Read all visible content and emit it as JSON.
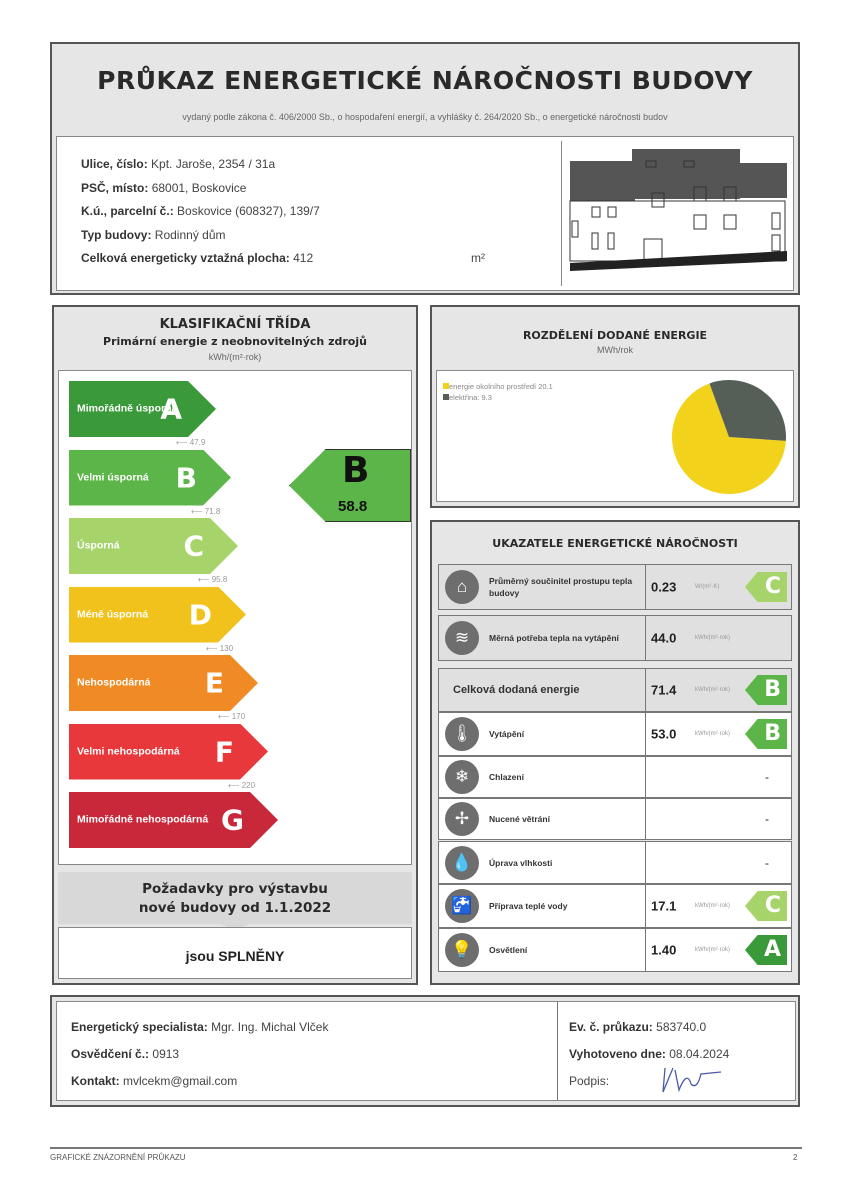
{
  "header": {
    "title": "PRŮKAZ ENERGETICKÉ NÁROČNOSTI BUDOVY",
    "subtitle": "vydaný podle zákona č. 406/2000 Sb., o hospodaření energií, a vyhlášky č. 264/2020 Sb., o energetické náročnosti budov"
  },
  "building": {
    "street_label": "Ulice, číslo:",
    "street": "Kpt. Jaroše, 2354 / 31a",
    "city_label": "PSČ, místo:",
    "city": "68001, Boskovice",
    "parcel_label": "K.ú., parcelní č.:",
    "parcel": "Boskovice (608327), 139/7",
    "type_label": "Typ budovy:",
    "type": "Rodinný dům",
    "area_label": "Celková energeticky vztažná plocha:",
    "area": "412",
    "area_unit": "m²",
    "photo": "building-facade-drawing"
  },
  "classification": {
    "title": "KLASIFIKAČNÍ TŘÍDA",
    "subtitle": "Primární energie z neobnovitelných zdrojů",
    "unit": "kWh/(m²·rok)",
    "classes": [
      {
        "letter": "A",
        "label": "Mimořádně úsporná",
        "color": "#3a9a3a",
        "threshold": "47.9"
      },
      {
        "letter": "B",
        "label": "Velmi úsporná",
        "color": "#5cb548",
        "threshold": "71.8"
      },
      {
        "letter": "C",
        "label": "Úsporná",
        "color": "#a6d46a",
        "threshold": "95.8"
      },
      {
        "letter": "D",
        "label": "Méně úsporná",
        "color": "#f1c21b",
        "threshold": "130"
      },
      {
        "letter": "E",
        "label": "Nehospodárná",
        "color": "#f08a24",
        "threshold": "170"
      },
      {
        "letter": "F",
        "label": "Velmi nehospodárná",
        "color": "#e8383b",
        "threshold": "220"
      },
      {
        "letter": "G",
        "label": "Mimořádně nehospodárná",
        "color": "#c8283a"
      }
    ],
    "result": {
      "letter": "B",
      "value": "58.8",
      "color": "#5cb548"
    },
    "requirement_line1": "Požadavky pro výstavbu",
    "requirement_line2": "nové budovy od 1.1.2022",
    "requirement_result": "jsou SPLNĚNY"
  },
  "distribution": {
    "title": "ROZDĚLENÍ DODANÉ ENERGIE",
    "unit": "MWh/rok",
    "legend": [
      {
        "label": "energie okolního prostředí 20.1",
        "value": 20.1,
        "color": "#f2d21a"
      },
      {
        "label": "elektřina: 9.3",
        "value": 9.3,
        "color": "#555f58"
      }
    ]
  },
  "indicators": {
    "title": "UKAZATELE ENERGETICKÉ NÁROČNOSTI",
    "rows": [
      {
        "icon": "house-icon",
        "glyph": "⌂",
        "label": "Průměrný součinitel prostupu tepla budovy",
        "value": "0.23",
        "unit": "W/(m²·K)",
        "class": "C",
        "color": "#a6d46a"
      },
      {
        "icon": "heat-demand-icon",
        "glyph": "≋",
        "label": "Měrná potřeba tepla na vytápění",
        "value": "44.0",
        "unit": "kWh/(m²·rok)",
        "class": "",
        "color": ""
      },
      {
        "icon": "",
        "glyph": "",
        "label": "Celková dodaná energie",
        "value": "71.4",
        "unit": "kWh/(m²·rok)",
        "class": "B",
        "color": "#5cb548"
      },
      {
        "icon": "heating-icon",
        "glyph": "🌡",
        "label": "Vytápění",
        "value": "53.0",
        "unit": "kWh/(m²·rok)",
        "class": "B",
        "color": "#5cb548"
      },
      {
        "icon": "cooling-icon",
        "glyph": "❄",
        "label": "Chlazení",
        "value": "-",
        "unit": "",
        "class": "",
        "color": ""
      },
      {
        "icon": "fan-icon",
        "glyph": "✢",
        "label": "Nucené větrání",
        "value": "-",
        "unit": "",
        "class": "",
        "color": ""
      },
      {
        "icon": "humidity-icon",
        "glyph": "💧",
        "label": "Úprava vlhkosti",
        "value": "-",
        "unit": "",
        "class": "",
        "color": ""
      },
      {
        "icon": "faucet-icon",
        "glyph": "🚰",
        "label": "Příprava teplé vody",
        "value": "17.1",
        "unit": "kWh/(m²·rok)",
        "class": "C",
        "color": "#a6d46a"
      },
      {
        "icon": "lightbulb-icon",
        "glyph": "💡",
        "label": "Osvětlení",
        "value": "1.40",
        "unit": "kWh/(m²·rok)",
        "class": "A",
        "color": "#3a9a3a"
      }
    ]
  },
  "footer": {
    "specialist_label": "Energetický specialista:",
    "specialist": "Mgr. Ing. Michal Vlček",
    "cert_label": "Osvědčení č.:",
    "cert": "0913",
    "contact_label": "Kontakt:",
    "contact": "mvlcekm@gmail.com",
    "ev_label": "Ev. č. průkazu:",
    "ev": "583740.0",
    "date_label": "Vyhotoveno dne:",
    "date": "08.04.2024",
    "sign_label": "Podpis:",
    "signature": "VV"
  },
  "page_footer": {
    "text": "GRAFICKÉ ZNÁZORNĚNÍ PRŮKAZU",
    "page": "2"
  }
}
